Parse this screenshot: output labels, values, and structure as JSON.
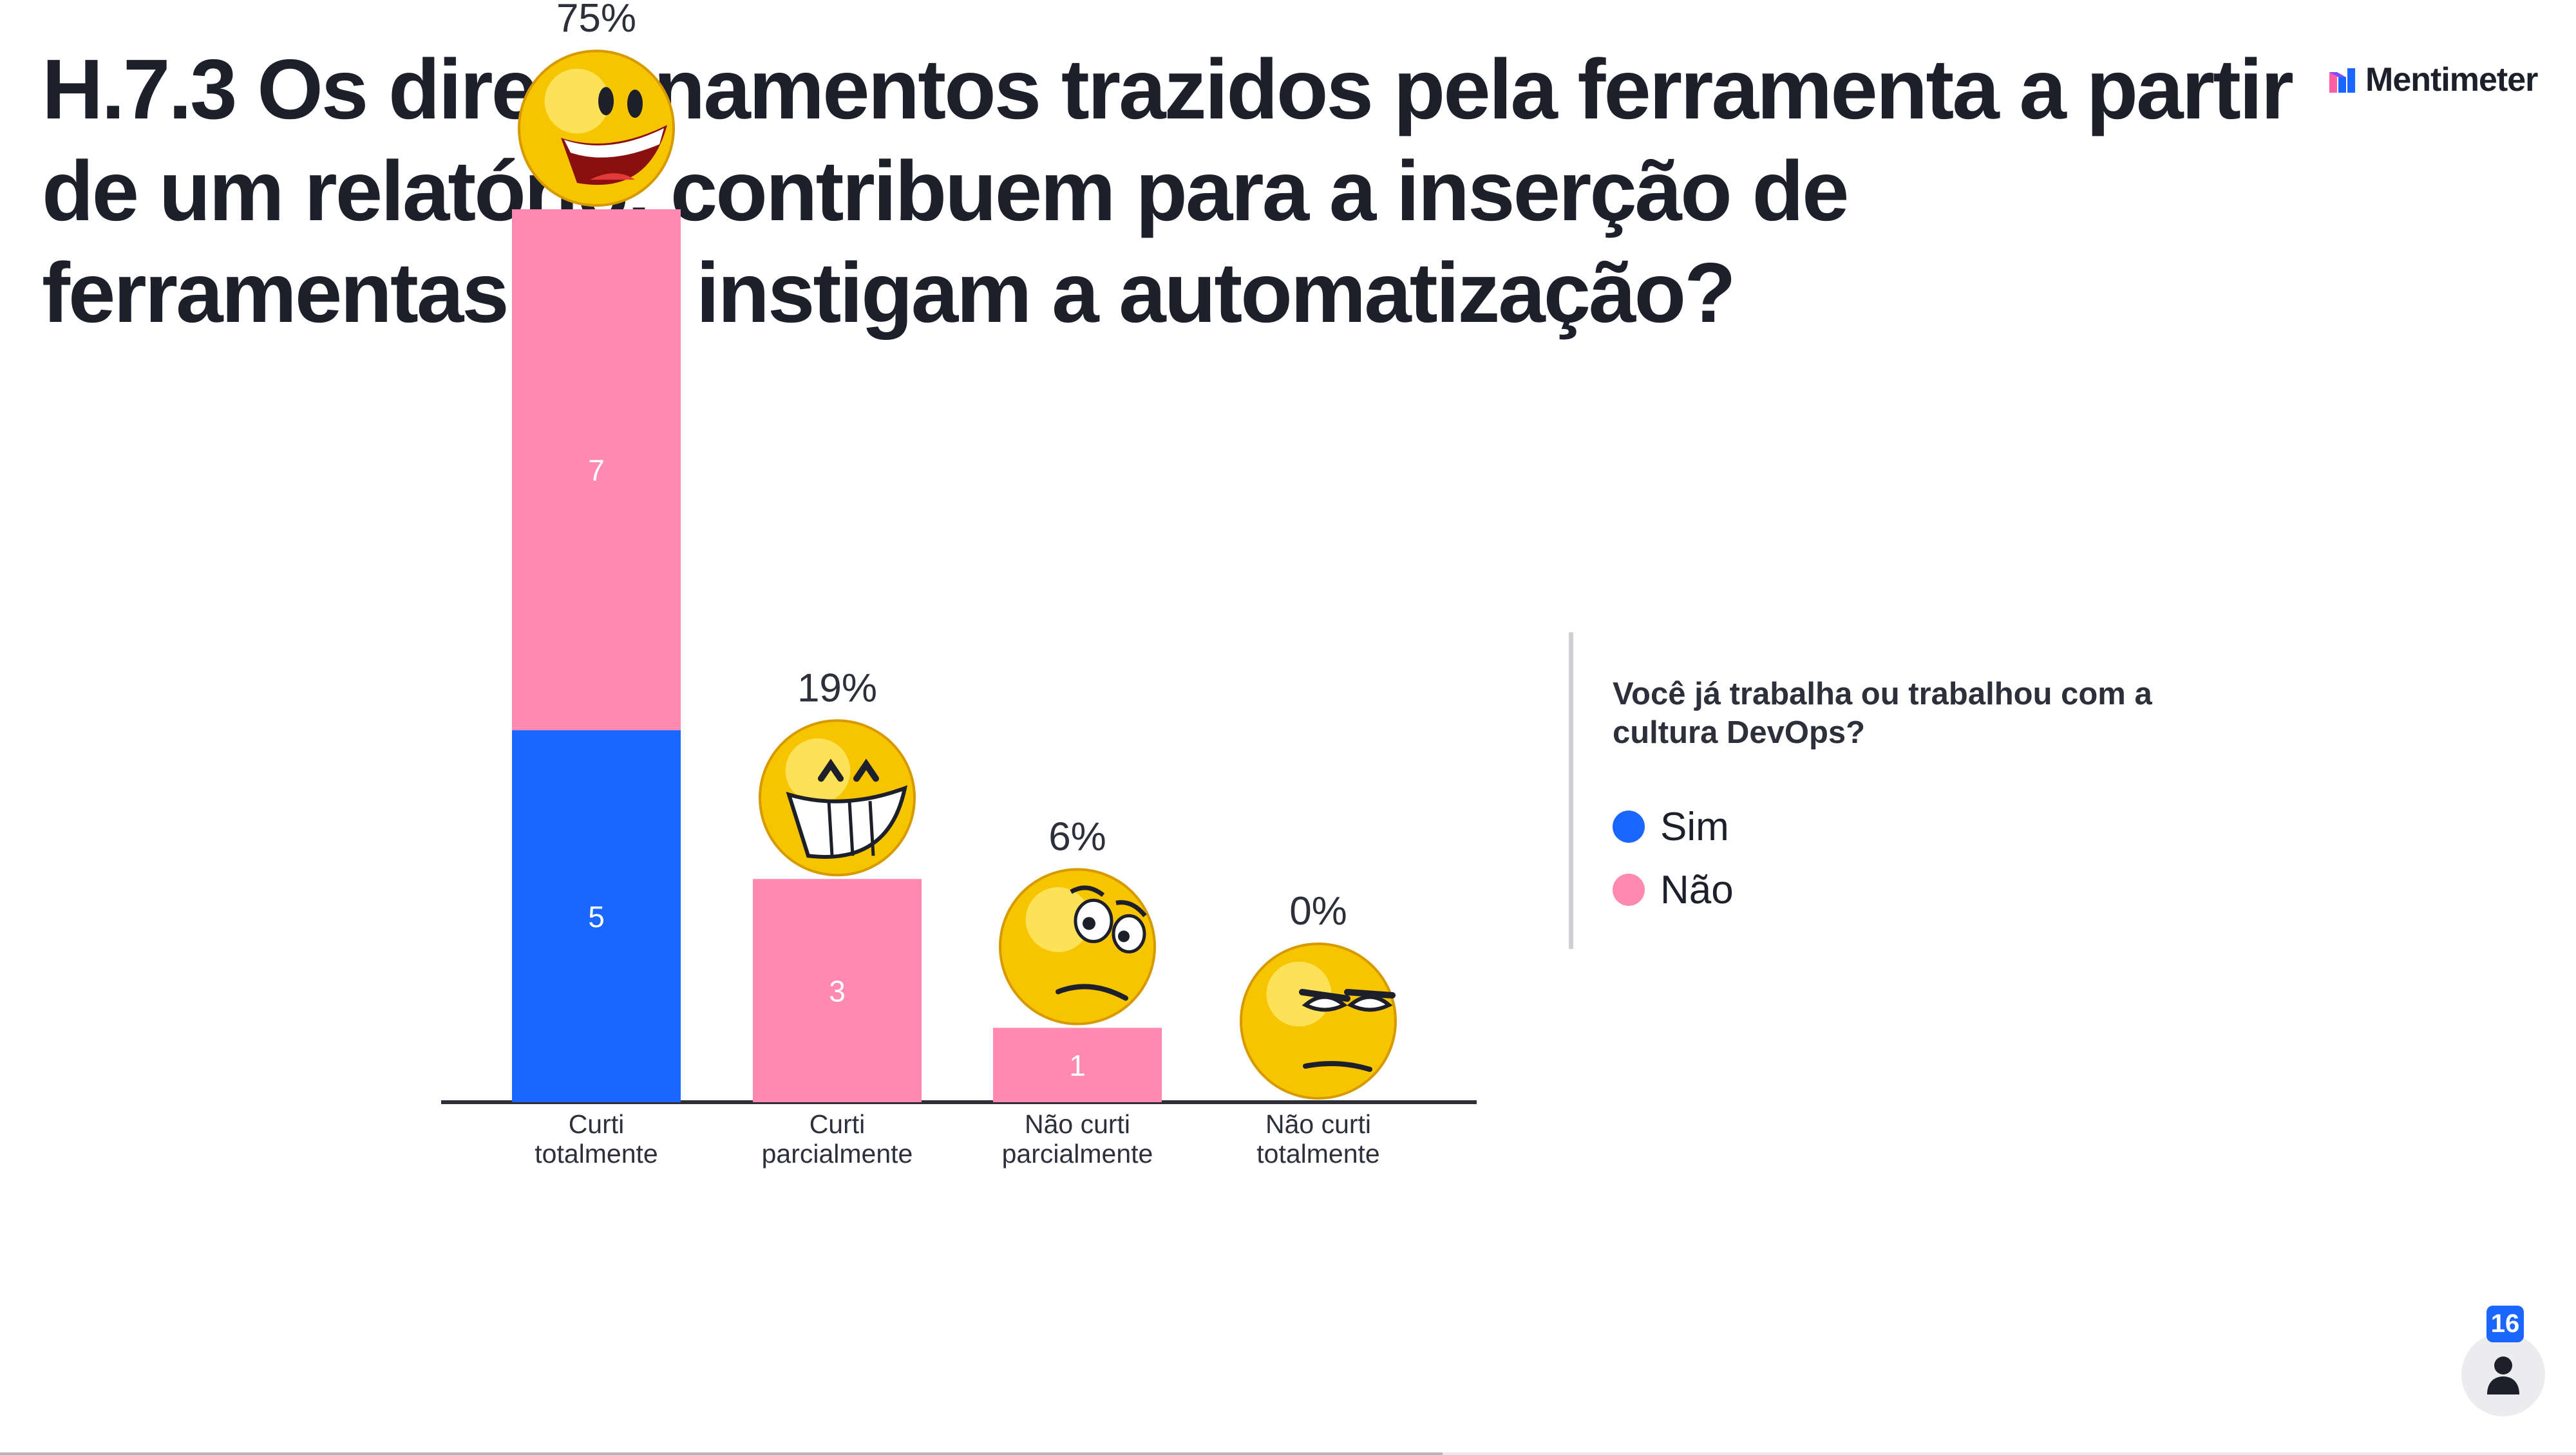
{
  "slide": {
    "title": "H.7.3 Os direcionamentos trazidos pela ferramenta a partir de um relatório, contribuem para a inserção de ferramentas que instigam a automatização?",
    "brand": "Mentimeter",
    "participants": "16",
    "progress": 0.56
  },
  "legend": {
    "title": "Você já trabalha ou trabalhou com a cultura DevOps?",
    "items": [
      {
        "label": "Sim",
        "color": "#1a66ff"
      },
      {
        "label": "Não",
        "color": "#ff89b1"
      }
    ]
  },
  "chart_data": {
    "type": "bar",
    "stacked": true,
    "categories": [
      [
        "Curti",
        "totalmente"
      ],
      [
        "Curti",
        "parcialmente"
      ],
      [
        "Não curti",
        "parcialmente"
      ],
      [
        "Não curti",
        "totalmente"
      ]
    ],
    "percent_labels": [
      "75%",
      "19%",
      "6%",
      "0%"
    ],
    "series": [
      {
        "name": "Sim",
        "color": "#1a66ff",
        "values": [
          5,
          0,
          0,
          0
        ]
      },
      {
        "name": "Não",
        "color": "#ff89b1",
        "values": [
          7,
          3,
          1,
          0
        ]
      }
    ],
    "category_icons": [
      "laughing-emoji-icon",
      "grinning-emoji-icon",
      "confused-emoji-icon",
      "unamused-emoji-icon"
    ],
    "legend_position": "right"
  }
}
